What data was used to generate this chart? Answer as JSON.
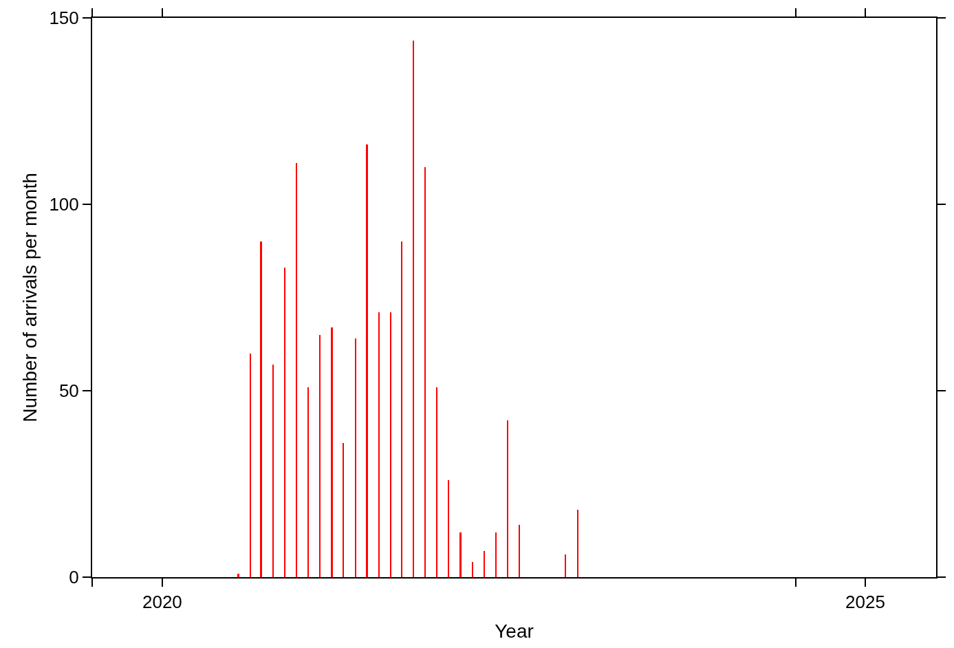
{
  "chart_data": {
    "type": "bar",
    "xlabel": "Year",
    "ylabel": "Number of arrivals per month",
    "x": [
      "2021-01-15",
      "2021-02-15",
      "2021-03-15",
      "2021-04-15",
      "2021-05-15",
      "2021-06-15",
      "2021-07-15",
      "2021-08-15",
      "2021-09-15",
      "2021-10-15",
      "2021-11-15",
      "2021-12-15",
      "2022-01-15",
      "2022-02-15",
      "2022-03-15",
      "2022-04-15",
      "2022-05-15",
      "2022-06-15",
      "2022-07-15",
      "2022-08-15",
      "2022-09-15",
      "2022-10-15",
      "2022-11-15",
      "2022-12-15",
      "2023-01-15",
      "2023-05-15",
      "2023-06-15"
    ],
    "values": [
      1,
      60,
      90,
      57,
      83,
      111,
      51,
      65,
      67,
      36,
      64,
      116,
      71,
      71,
      90,
      144,
      110,
      51,
      26,
      12,
      4,
      7,
      12,
      42,
      14,
      6,
      18
    ],
    "color": "#ff0000",
    "xlim": [
      "2020-01-01",
      "2026-01-01"
    ],
    "xticks": [
      {
        "value": "2020-01-01",
        "label": null
      },
      {
        "value": "2020-07-01",
        "label": "2020"
      },
      {
        "value": "2025-01-01",
        "label": null
      },
      {
        "value": "2025-07-01",
        "label": "2025"
      }
    ],
    "ylim": [
      0,
      150
    ],
    "yticks": [
      0,
      50,
      100,
      150
    ]
  }
}
